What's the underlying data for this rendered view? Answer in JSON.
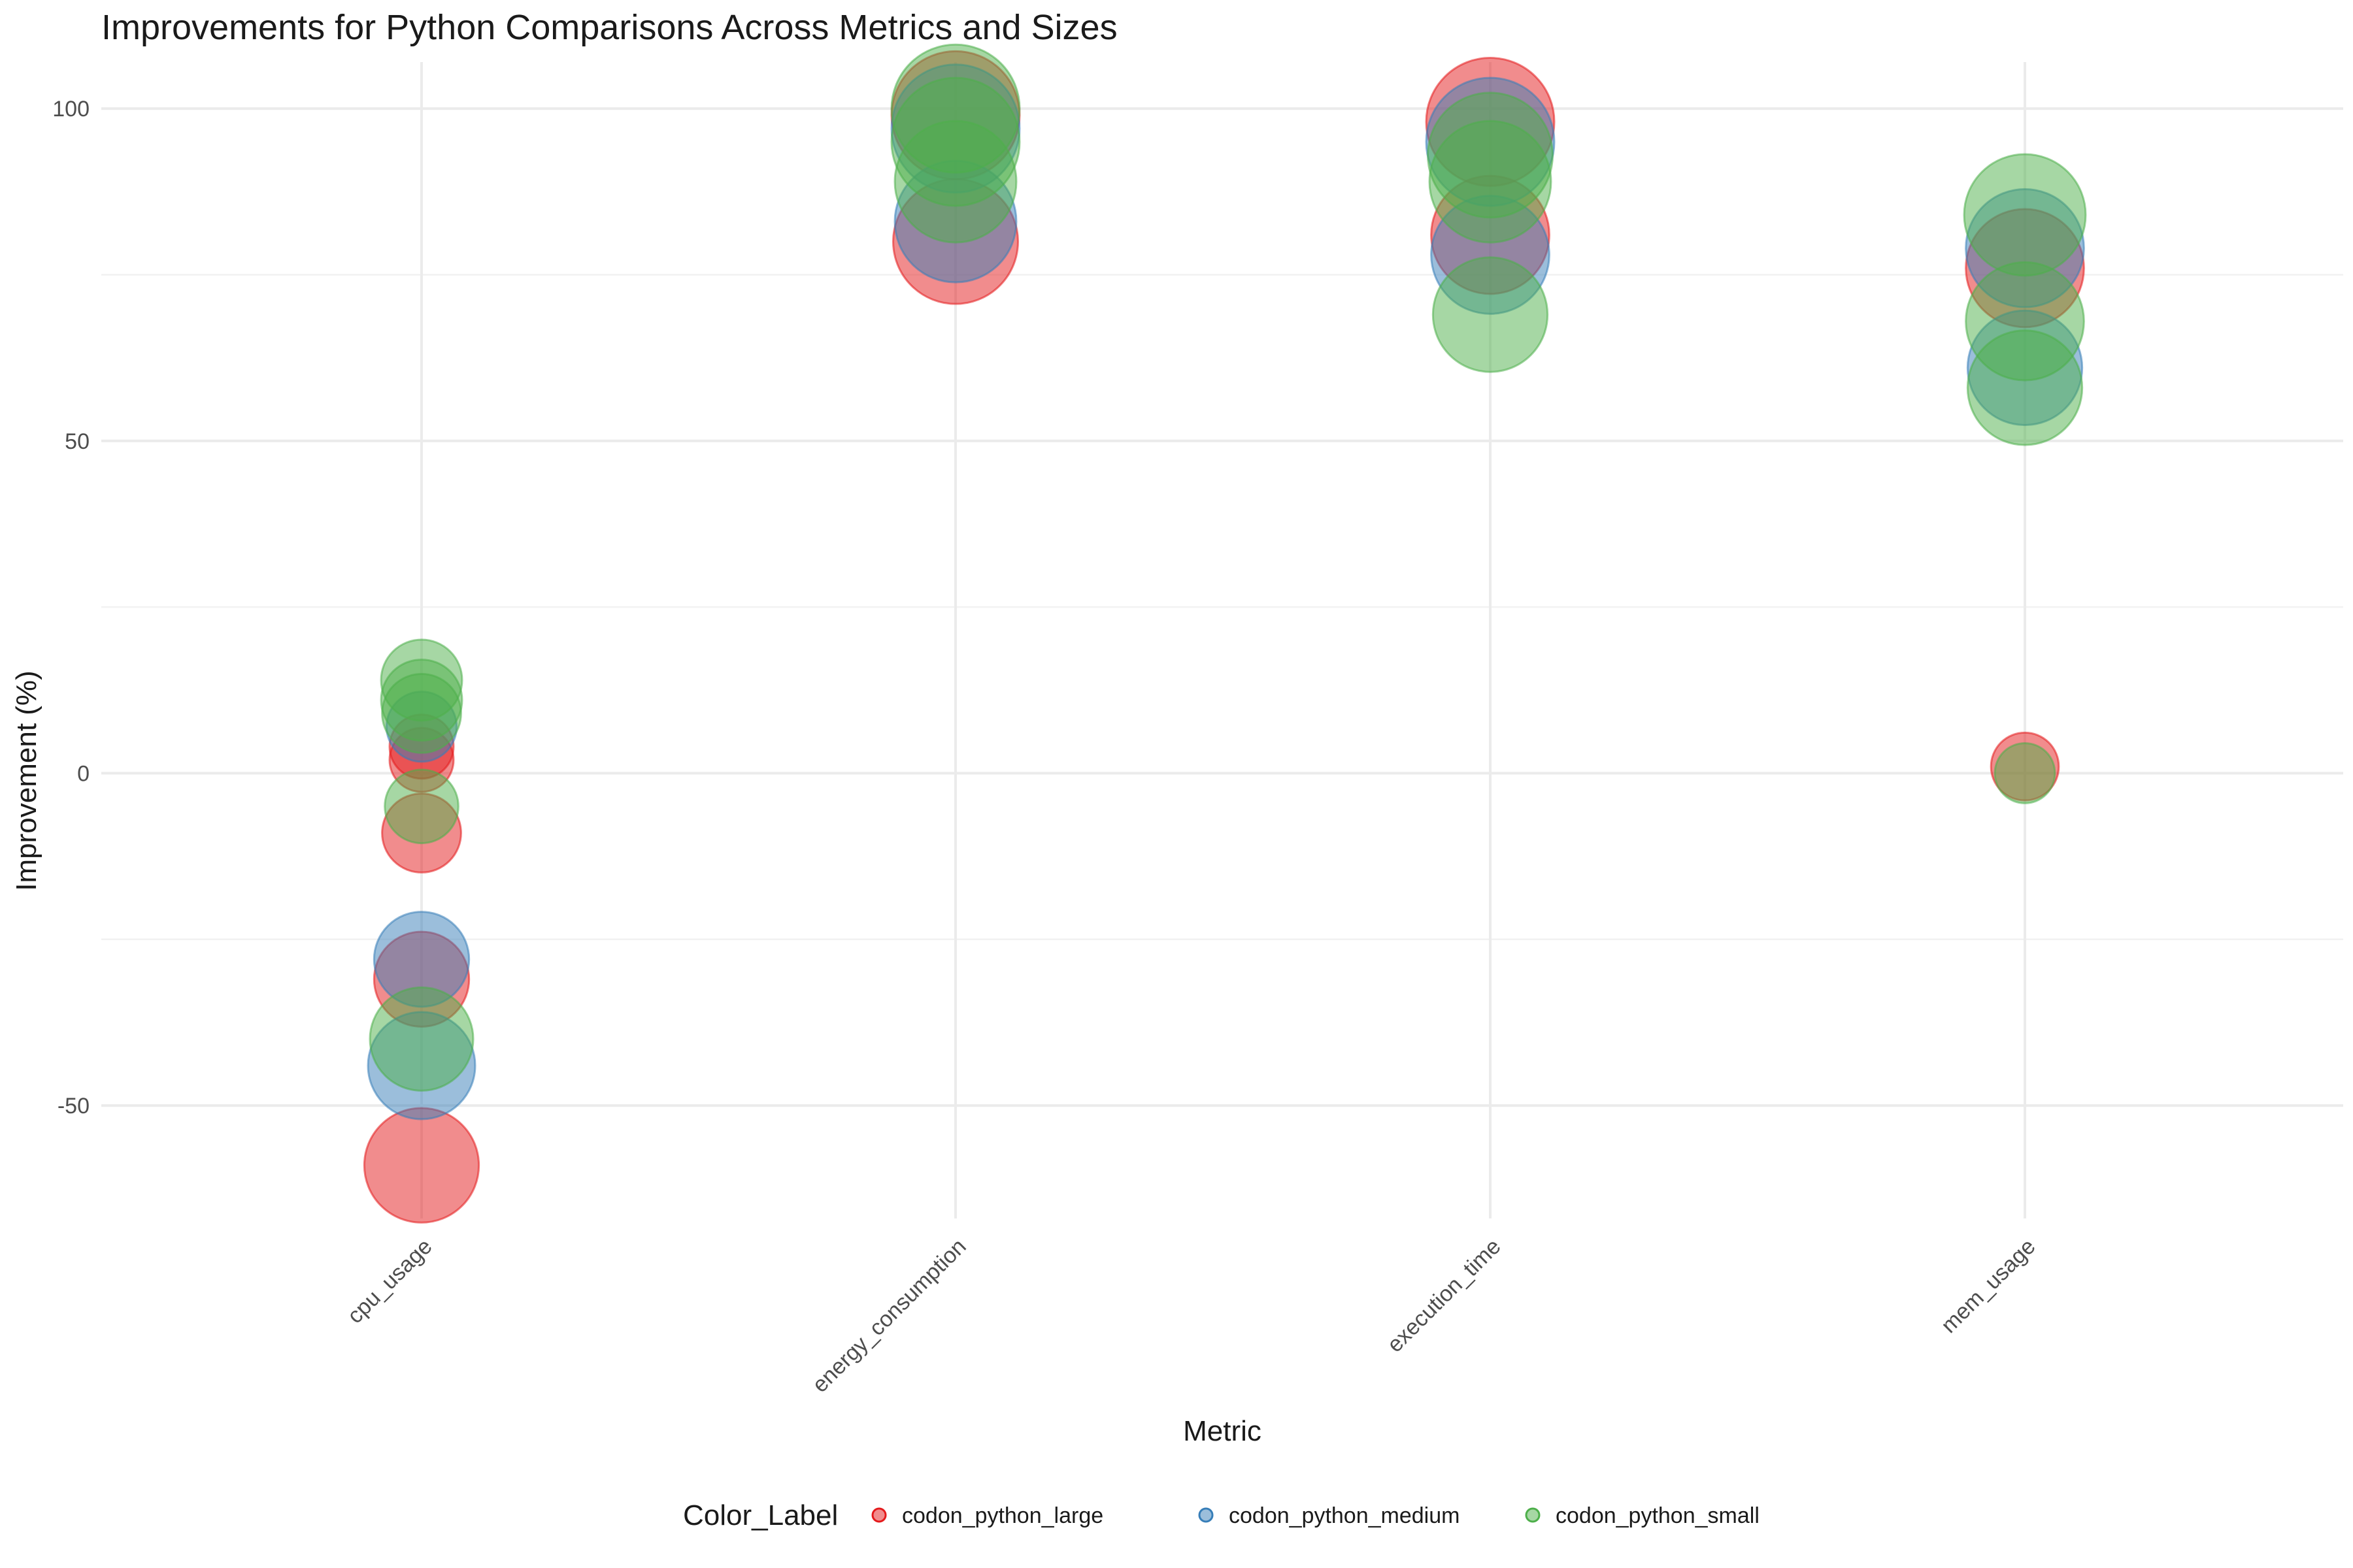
{
  "chart_data": {
    "type": "scatter",
    "title": "Improvements for Python Comparisons Across Metrics and Sizes",
    "xlabel": "Metric",
    "ylabel": "Improvement (%)",
    "categories": [
      "cpu_usage",
      "energy_consumption",
      "execution_time",
      "mem_usage"
    ],
    "ylim": [
      -67,
      107
    ],
    "y_ticks": [
      -50,
      0,
      50,
      100
    ],
    "y_tick_labels": [
      "-50",
      "0",
      "50",
      "100"
    ],
    "grid": true,
    "legend": {
      "title": "Color_Label",
      "position": "bottom",
      "entries": [
        "codon_python_large",
        "codon_python_medium",
        "codon_python_small"
      ]
    },
    "series": [
      {
        "name": "codon_python_large",
        "color": "#E41A1C",
        "points": [
          {
            "x": "cpu_usage",
            "y": -59,
            "size": 0.8
          },
          {
            "x": "cpu_usage",
            "y": -31,
            "size": 0.55
          },
          {
            "x": "cpu_usage",
            "y": -9,
            "size": 0.38
          },
          {
            "x": "cpu_usage",
            "y": 2,
            "size": 0.25
          },
          {
            "x": "cpu_usage",
            "y": 4,
            "size": 0.25
          },
          {
            "x": "energy_consumption",
            "y": 80,
            "size": 0.95
          },
          {
            "x": "energy_consumption",
            "y": 99,
            "size": 1.0
          },
          {
            "x": "execution_time",
            "y": 81,
            "size": 0.85
          },
          {
            "x": "execution_time",
            "y": 98,
            "size": 1.0
          },
          {
            "x": "mem_usage",
            "y": 1,
            "size": 0.28
          },
          {
            "x": "mem_usage",
            "y": 76,
            "size": 0.85
          }
        ]
      },
      {
        "name": "codon_python_medium",
        "color": "#377EB8",
        "points": [
          {
            "x": "cpu_usage",
            "y": -28,
            "size": 0.55
          },
          {
            "x": "cpu_usage",
            "y": -44,
            "size": 0.7
          },
          {
            "x": "cpu_usage",
            "y": 7,
            "size": 0.3
          },
          {
            "x": "energy_consumption",
            "y": 83,
            "size": 0.9
          },
          {
            "x": "energy_consumption",
            "y": 97,
            "size": 1.0
          },
          {
            "x": "execution_time",
            "y": 78,
            "size": 0.85
          },
          {
            "x": "execution_time",
            "y": 95,
            "size": 1.0
          },
          {
            "x": "mem_usage",
            "y": 61,
            "size": 0.8
          },
          {
            "x": "mem_usage",
            "y": 79,
            "size": 0.85
          }
        ]
      },
      {
        "name": "codon_python_small",
        "color": "#4DAF4A",
        "points": [
          {
            "x": "cpu_usage",
            "y": 14,
            "size": 0.4
          },
          {
            "x": "cpu_usage",
            "y": 11,
            "size": 0.4
          },
          {
            "x": "cpu_usage",
            "y": 9,
            "size": 0.38
          },
          {
            "x": "cpu_usage",
            "y": -5,
            "size": 0.33
          },
          {
            "x": "cpu_usage",
            "y": -40,
            "size": 0.65
          },
          {
            "x": "energy_consumption",
            "y": 89,
            "size": 0.9
          },
          {
            "x": "energy_consumption",
            "y": 95,
            "size": 1.0
          },
          {
            "x": "energy_consumption",
            "y": 100,
            "size": 1.0
          },
          {
            "x": "execution_time",
            "y": 69,
            "size": 0.8
          },
          {
            "x": "execution_time",
            "y": 89,
            "size": 0.9
          },
          {
            "x": "execution_time",
            "y": 93,
            "size": 0.95
          },
          {
            "x": "mem_usage",
            "y": 0,
            "size": 0.22
          },
          {
            "x": "mem_usage",
            "y": 58,
            "size": 0.8
          },
          {
            "x": "mem_usage",
            "y": 68,
            "size": 0.85
          },
          {
            "x": "mem_usage",
            "y": 84,
            "size": 0.9
          }
        ]
      }
    ]
  }
}
